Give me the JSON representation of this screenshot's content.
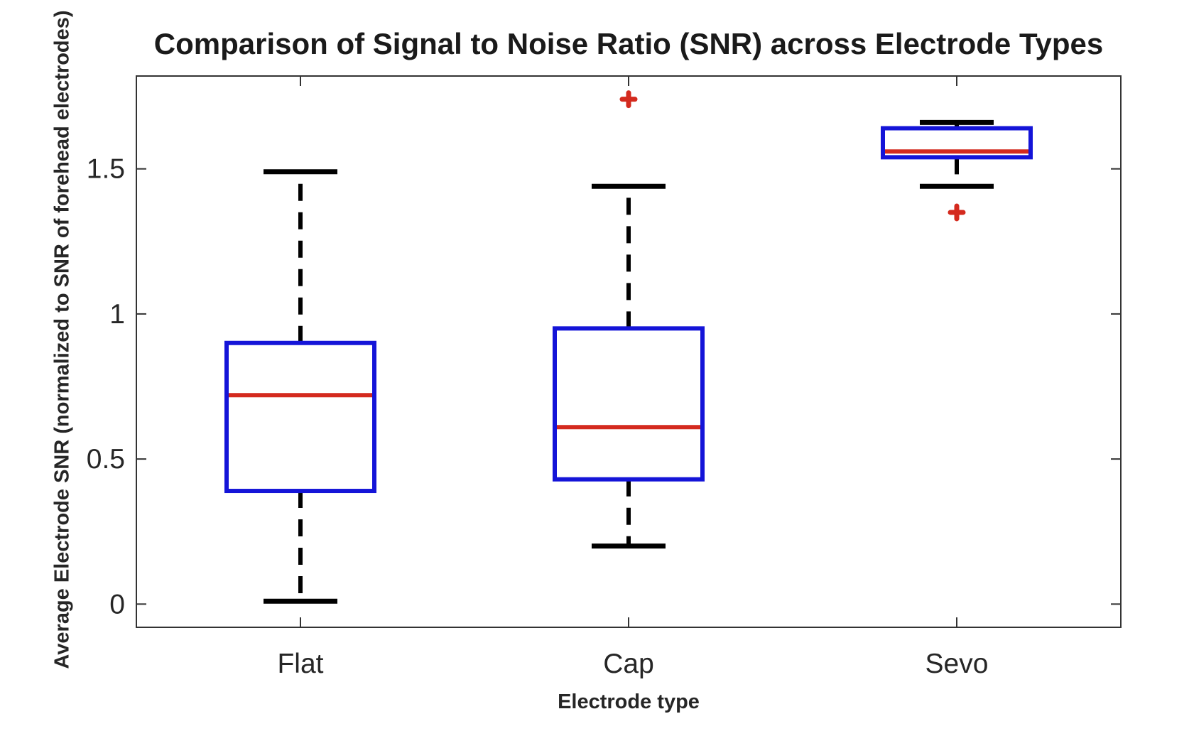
{
  "figure": {
    "title": "Comparison of Signal to Noise Ratio (SNR) across Electrode Types",
    "xlabel": "Electrode type",
    "ylabel": "Average Electrode SNR (normalized to SNR of forehead electrodes)"
  },
  "chart_data": {
    "type": "boxplot",
    "title": "Comparison of Signal to Noise Ratio (SNR) across Electrode Types",
    "xlabel": "Electrode type",
    "ylabel": "Average Electrode SNR (normalized to SNR of forehead electrodes)",
    "categories": [
      "Flat",
      "Cap",
      "Sevo"
    ],
    "ytick_labels": [
      "0",
      "0.5",
      "1",
      "1.5"
    ],
    "yticks": [
      0,
      0.5,
      1,
      1.5
    ],
    "ylim": [
      -0.08,
      1.82
    ],
    "grid": false,
    "legend": null,
    "series": [
      {
        "category": "Flat",
        "whisker_low": 0.01,
        "q1": 0.39,
        "median": 0.72,
        "q3": 0.9,
        "whisker_high": 1.49,
        "outliers": []
      },
      {
        "category": "Cap",
        "whisker_low": 0.2,
        "q1": 0.43,
        "median": 0.61,
        "q3": 0.95,
        "whisker_high": 1.44,
        "outliers": [
          1.74
        ]
      },
      {
        "category": "Sevo",
        "whisker_low": 1.44,
        "q1": 1.54,
        "median": 1.56,
        "q3": 1.64,
        "whisker_high": 1.66,
        "outliers": [
          1.35
        ]
      }
    ],
    "colors": {
      "box": "#1414d8",
      "median": "#d42a1e",
      "whisker": "#000000",
      "outlier": "#d42a1e",
      "axis": "#333333",
      "tick_label": "#262626"
    }
  }
}
